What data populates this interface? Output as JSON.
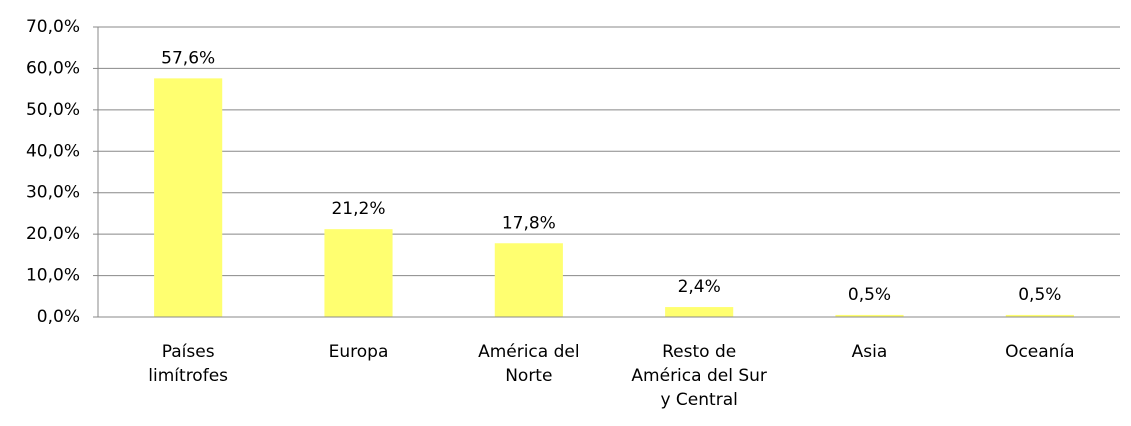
{
  "chart_data": {
    "type": "bar",
    "categories": [
      "Países\nlimítrofes",
      "Europa",
      "América del\nNorte",
      "Resto de\nAmérica del Sur\ny Central",
      "Asia",
      "Oceanía"
    ],
    "values": [
      57.6,
      21.2,
      17.8,
      2.4,
      0.5,
      0.5
    ],
    "value_labels": [
      "57,6%",
      "21,2%",
      "17,8%",
      "2,4%",
      "0,5%",
      "0,5%"
    ],
    "color": "#ffff70",
    "ylim": [
      0,
      70
    ],
    "yticks": [
      {
        "value": 0,
        "label": "0,0%"
      },
      {
        "value": 10,
        "label": "10,0%"
      },
      {
        "value": 20,
        "label": "20,0%"
      },
      {
        "value": 30,
        "label": "30,0%"
      },
      {
        "value": 40,
        "label": "40,0%"
      },
      {
        "value": 50,
        "label": "50,0%"
      },
      {
        "value": 60,
        "label": "60,0%"
      },
      {
        "value": 70,
        "label": "70,0%"
      }
    ],
    "grid": true
  }
}
